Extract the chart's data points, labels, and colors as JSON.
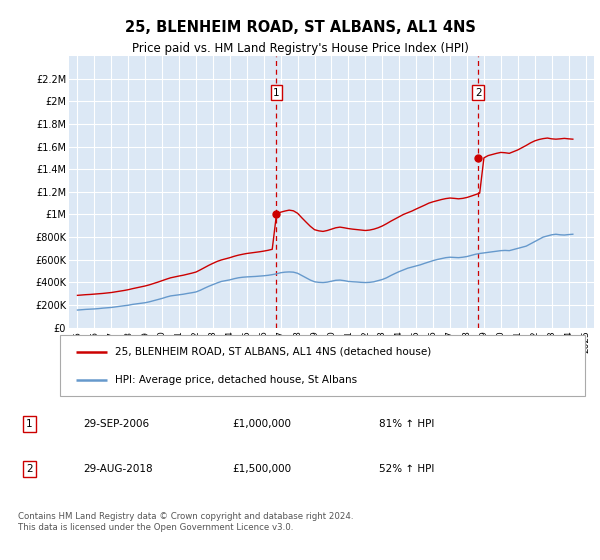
{
  "title": "25, BLENHEIM ROAD, ST ALBANS, AL1 4NS",
  "subtitle": "Price paid vs. HM Land Registry's House Price Index (HPI)",
  "legend_line1": "25, BLENHEIM ROAD, ST ALBANS, AL1 4NS (detached house)",
  "legend_line2": "HPI: Average price, detached house, St Albans",
  "footnote": "Contains HM Land Registry data © Crown copyright and database right 2024.\nThis data is licensed under the Open Government Licence v3.0.",
  "sale1_label": "1",
  "sale1_date": "29-SEP-2006",
  "sale1_price": "£1,000,000",
  "sale1_hpi": "81% ↑ HPI",
  "sale2_label": "2",
  "sale2_date": "29-AUG-2018",
  "sale2_price": "£1,500,000",
  "sale2_hpi": "52% ↑ HPI",
  "sale1_x": 2006.75,
  "sale1_y": 1000000,
  "sale2_x": 2018.67,
  "sale2_y": 1500000,
  "vline1_x": 2006.75,
  "vline2_x": 2018.67,
  "ylim": [
    0,
    2400000
  ],
  "xlim": [
    1994.5,
    2025.5
  ],
  "yticks": [
    0,
    200000,
    400000,
    600000,
    800000,
    1000000,
    1200000,
    1400000,
    1600000,
    1800000,
    2000000,
    2200000
  ],
  "ytick_labels": [
    "£0",
    "£200K",
    "£400K",
    "£600K",
    "£800K",
    "£1M",
    "£1.2M",
    "£1.4M",
    "£1.6M",
    "£1.8M",
    "£2M",
    "£2.2M"
  ],
  "bg_color": "#dce8f5",
  "red_color": "#cc0000",
  "blue_color": "#6699cc",
  "grid_color": "#ffffff",
  "hpi_years": [
    1995,
    1995.25,
    1995.5,
    1995.75,
    1996,
    1996.25,
    1996.5,
    1996.75,
    1997,
    1997.25,
    1997.5,
    1997.75,
    1998,
    1998.25,
    1998.5,
    1998.75,
    1999,
    1999.25,
    1999.5,
    1999.75,
    2000,
    2000.25,
    2000.5,
    2000.75,
    2001,
    2001.25,
    2001.5,
    2001.75,
    2002,
    2002.25,
    2002.5,
    2002.75,
    2003,
    2003.25,
    2003.5,
    2003.75,
    2004,
    2004.25,
    2004.5,
    2004.75,
    2005,
    2005.25,
    2005.5,
    2005.75,
    2006,
    2006.25,
    2006.5,
    2006.75,
    2007,
    2007.25,
    2007.5,
    2007.75,
    2008,
    2008.25,
    2008.5,
    2008.75,
    2009,
    2009.25,
    2009.5,
    2009.75,
    2010,
    2010.25,
    2010.5,
    2010.75,
    2011,
    2011.25,
    2011.5,
    2011.75,
    2012,
    2012.25,
    2012.5,
    2012.75,
    2013,
    2013.25,
    2013.5,
    2013.75,
    2014,
    2014.25,
    2014.5,
    2014.75,
    2015,
    2015.25,
    2015.5,
    2015.75,
    2016,
    2016.25,
    2016.5,
    2016.75,
    2017,
    2017.25,
    2017.5,
    2017.75,
    2018,
    2018.25,
    2018.5,
    2018.75,
    2019,
    2019.25,
    2019.5,
    2019.75,
    2020,
    2020.25,
    2020.5,
    2020.75,
    2021,
    2021.25,
    2021.5,
    2021.75,
    2022,
    2022.25,
    2022.5,
    2022.75,
    2023,
    2023.25,
    2023.5,
    2023.75,
    2024,
    2024.25
  ],
  "hpi_values": [
    155000,
    158000,
    161000,
    163000,
    165000,
    168000,
    172000,
    175000,
    178000,
    183000,
    188000,
    193000,
    198000,
    205000,
    210000,
    215000,
    220000,
    228000,
    238000,
    248000,
    258000,
    270000,
    280000,
    285000,
    290000,
    295000,
    302000,
    308000,
    315000,
    330000,
    348000,
    365000,
    380000,
    395000,
    408000,
    415000,
    422000,
    432000,
    440000,
    445000,
    448000,
    450000,
    452000,
    455000,
    458000,
    462000,
    468000,
    475000,
    485000,
    490000,
    492000,
    490000,
    480000,
    460000,
    440000,
    420000,
    405000,
    400000,
    398000,
    402000,
    410000,
    418000,
    420000,
    415000,
    408000,
    405000,
    403000,
    400000,
    398000,
    400000,
    405000,
    415000,
    425000,
    440000,
    460000,
    478000,
    495000,
    510000,
    525000,
    535000,
    545000,
    555000,
    568000,
    580000,
    592000,
    602000,
    610000,
    618000,
    622000,
    620000,
    618000,
    622000,
    628000,
    638000,
    648000,
    655000,
    660000,
    665000,
    670000,
    675000,
    680000,
    682000,
    680000,
    690000,
    700000,
    710000,
    720000,
    740000,
    760000,
    780000,
    800000,
    810000,
    820000,
    825000,
    820000,
    818000,
    822000,
    825000
  ],
  "red_years": [
    1995,
    1995.25,
    1995.5,
    1995.75,
    1996,
    1996.25,
    1996.5,
    1996.75,
    1997,
    1997.25,
    1997.5,
    1997.75,
    1998,
    1998.25,
    1998.5,
    1998.75,
    1999,
    1999.25,
    1999.5,
    1999.75,
    2000,
    2000.25,
    2000.5,
    2000.75,
    2001,
    2001.25,
    2001.5,
    2001.75,
    2002,
    2002.25,
    2002.5,
    2002.75,
    2003,
    2003.25,
    2003.5,
    2003.75,
    2004,
    2004.25,
    2004.5,
    2004.75,
    2005,
    2005.25,
    2005.5,
    2005.75,
    2006,
    2006.25,
    2006.5,
    2006.75,
    2007,
    2007.25,
    2007.5,
    2007.75,
    2008,
    2008.25,
    2008.5,
    2008.75,
    2009,
    2009.25,
    2009.5,
    2009.75,
    2010,
    2010.25,
    2010.5,
    2010.75,
    2011,
    2011.25,
    2011.5,
    2011.75,
    2012,
    2012.25,
    2012.5,
    2012.75,
    2013,
    2013.25,
    2013.5,
    2013.75,
    2014,
    2014.25,
    2014.5,
    2014.75,
    2015,
    2015.25,
    2015.5,
    2015.75,
    2016,
    2016.25,
    2016.5,
    2016.75,
    2017,
    2017.25,
    2017.5,
    2017.75,
    2018,
    2018.25,
    2018.5,
    2018.75,
    2019,
    2019.25,
    2019.5,
    2019.75,
    2020,
    2020.25,
    2020.5,
    2020.75,
    2021,
    2021.25,
    2021.5,
    2021.75,
    2022,
    2022.25,
    2022.5,
    2022.75,
    2023,
    2023.25,
    2023.5,
    2023.75,
    2024,
    2024.25
  ],
  "red_values": [
    285000,
    288000,
    291000,
    293000,
    296000,
    299000,
    302000,
    306000,
    310000,
    316000,
    322000,
    328000,
    335000,
    344000,
    352000,
    360000,
    368000,
    378000,
    390000,
    402000,
    415000,
    428000,
    440000,
    448000,
    456000,
    463000,
    472000,
    481000,
    491000,
    510000,
    530000,
    550000,
    568000,
    585000,
    598000,
    608000,
    618000,
    630000,
    640000,
    648000,
    655000,
    660000,
    665000,
    670000,
    676000,
    683000,
    692000,
    1000000,
    1020000,
    1030000,
    1038000,
    1032000,
    1010000,
    970000,
    932000,
    895000,
    865000,
    855000,
    850000,
    858000,
    870000,
    882000,
    888000,
    882000,
    875000,
    870000,
    866000,
    862000,
    858000,
    862000,
    870000,
    882000,
    898000,
    918000,
    940000,
    960000,
    980000,
    1000000,
    1015000,
    1030000,
    1048000,
    1065000,
    1082000,
    1100000,
    1112000,
    1122000,
    1132000,
    1140000,
    1145000,
    1142000,
    1138000,
    1142000,
    1150000,
    1162000,
    1175000,
    1188000,
    1500000,
    1520000,
    1530000,
    1540000,
    1548000,
    1545000,
    1540000,
    1555000,
    1570000,
    1590000,
    1610000,
    1632000,
    1650000,
    1662000,
    1670000,
    1675000,
    1668000,
    1665000,
    1668000,
    1672000,
    1668000,
    1665000
  ],
  "xticks": [
    1995,
    1996,
    1997,
    1998,
    1999,
    2000,
    2001,
    2002,
    2003,
    2004,
    2005,
    2006,
    2007,
    2008,
    2009,
    2010,
    2011,
    2012,
    2013,
    2014,
    2015,
    2016,
    2017,
    2018,
    2019,
    2020,
    2021,
    2022,
    2023,
    2024,
    2025
  ],
  "figsize": [
    6.0,
    5.6
  ],
  "dpi": 100
}
